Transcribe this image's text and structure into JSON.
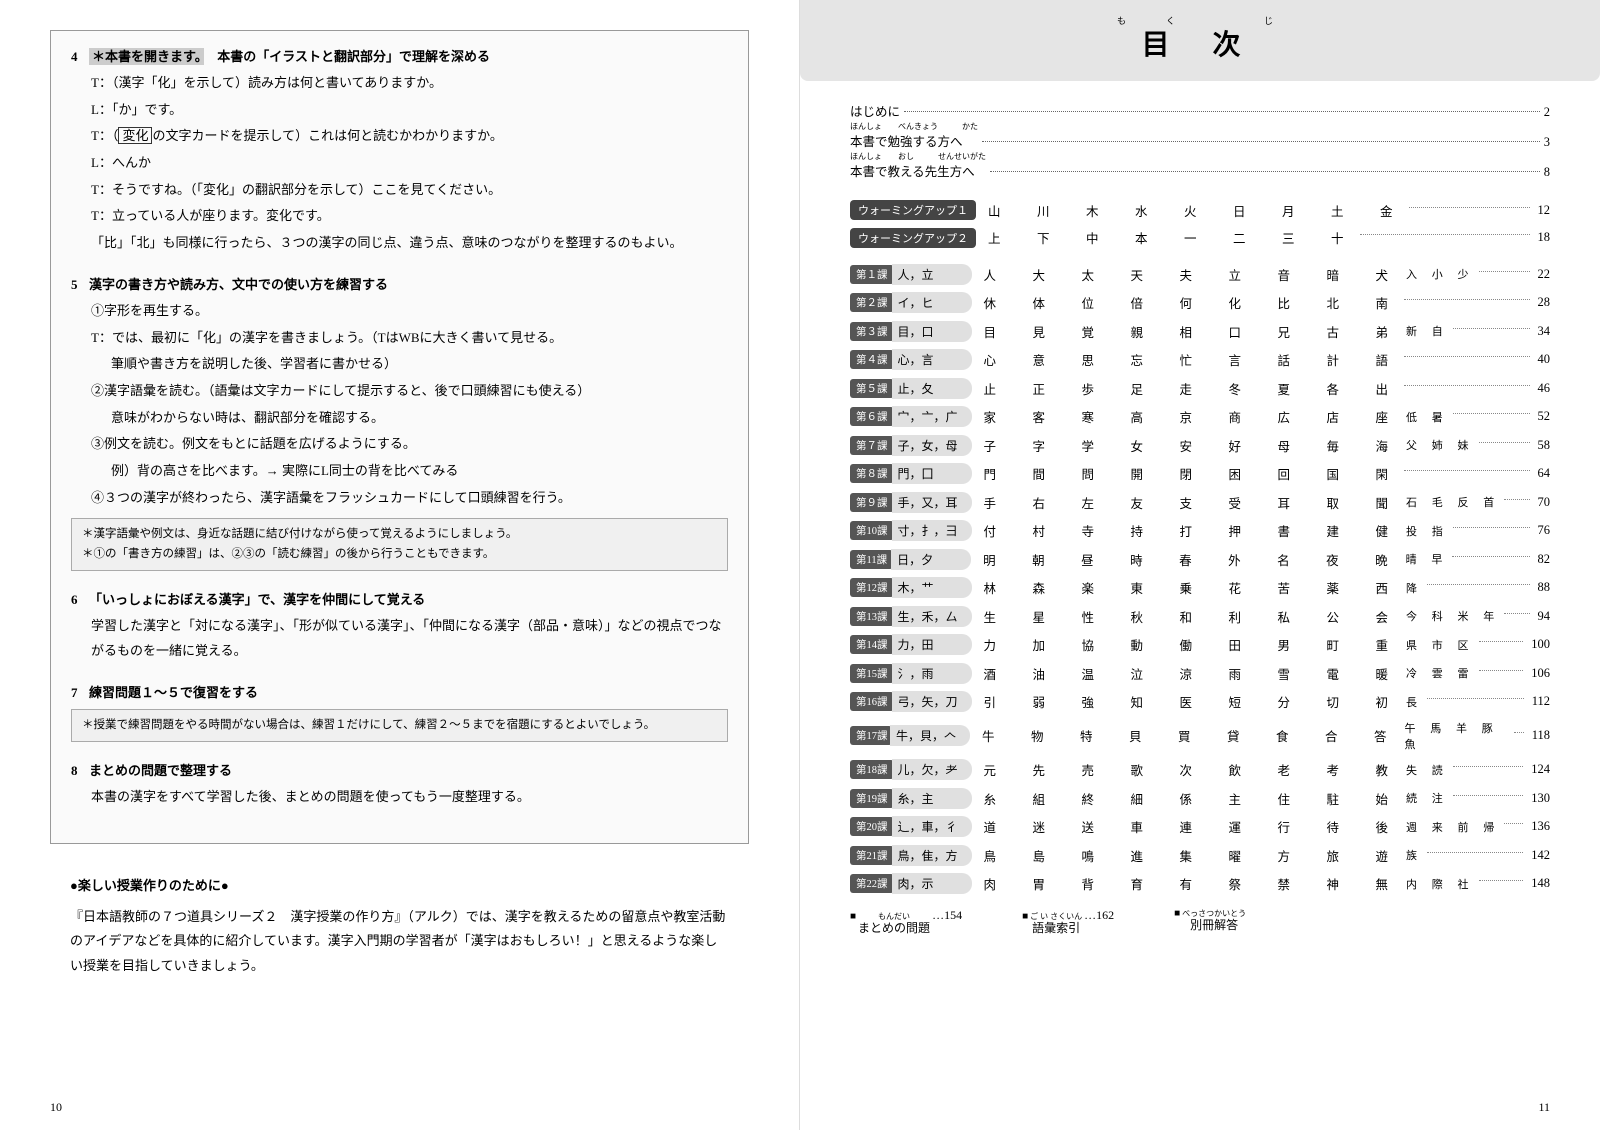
{
  "leftPage": {
    "pageNum": "10",
    "steps": [
      {
        "num": "4",
        "titlePre": "＊本書を開きます。",
        "titleMain": "本書の「イラストと翻訳部分」で理解を深める",
        "lines": [
          "T：（漢字「化」を示して）読み方は何と書いてありますか。",
          "L：「か」です。",
          "T：（<span class='boxed'>変化</span>の文字カードを提示して）これは何と読むかわかりますか。",
          "L：へんか",
          "T：そうですね。（「変化」の翻訳部分を示して）ここを見てください。",
          "T：立っている人が座ります。変化です。",
          "「比」「北」も同様に行ったら、３つの漢字の同じ点、違う点、意味のつながりを整理するのもよい。"
        ]
      },
      {
        "num": "5",
        "titleMain": "漢字の書き方や読み方、文中での使い方を練習する",
        "lines": [
          "①字形を再生する。",
          "T：では、最初に「化」の漢字を書きましょう。（TはWBに大きく書いて見せる。",
          "<span class='sub-indent'>筆順や書き方を説明した後、学習者に書かせる）</span>",
          "②漢字語彙を読む。（語彙は文字カードにして提示すると、後で口頭練習にも使える）",
          "<span class='sub-indent'>意味がわからない時は、翻訳部分を確認する。</span>",
          "③例文を読む。例文をもとに話題を広げるようにする。",
          "<span class='sub-indent'>例）背の高さを比べます。→ 実際にL同士の背を比べてみる</span>",
          "④３つの漢字が終わったら、漢字語彙をフラッシュカードにして口頭練習を行う。"
        ],
        "note": [
          "＊漢字語彙や例文は、身近な話題に結び付けながら使って覚えるようにしましょう。",
          "＊①の「書き方の練習」は、②③の「読む練習」の後から行うこともできます。"
        ]
      },
      {
        "num": "6",
        "titleMain": "「いっしょにおぼえる漢字」で、漢字を仲間にして覚える",
        "lines": [
          "学習した漢字と「対になる漢字」、「形が似ている漢字」、「仲間になる漢字（部品・意味）」などの視点でつながるものを一緒に覚える。"
        ]
      },
      {
        "num": "7",
        "titleMain": "練習問題１～５で復習をする",
        "note": [
          "＊授業で練習問題をやる時間がない場合は、練習１だけにして、練習２～５までを宿題にするとよいでしょう。"
        ]
      },
      {
        "num": "8",
        "titleMain": "まとめの問題で整理する",
        "lines": [
          "本書の漢字をすべて学習した後、まとめの問題を使ってもう一度整理する。"
        ]
      }
    ],
    "bottom": {
      "title": "●楽しい授業作りのために●",
      "body": "『日本語教師の７つ道具シリーズ２　漢字授業の作り方』（アルク）では、漢字を教えるための留意点や教室活動のアイデアなどを具体的に紹介しています。漢字入門期の学習者が「漢字はおもしろい！」と思えるような楽しい授業を目指していきましょう。"
    }
  },
  "rightPage": {
    "pageNum": "11",
    "header": {
      "ruby": "もく　じ",
      "main": "目 次"
    },
    "intro": [
      {
        "label": "はじめに",
        "ruby": "",
        "page": "2"
      },
      {
        "label": "本書で勉強する方へ",
        "ruby": "ほんしょ　　べんきょう　　　かた",
        "page": "3"
      },
      {
        "label": "本書で教える先生方へ",
        "ruby": "ほんしょ　　おし　　　せんせいがた",
        "page": "8"
      }
    ],
    "warmup": [
      {
        "label": "ウォーミングアップ１",
        "kanji": "山　川　木　水　火　日　月　土　金",
        "page": "12"
      },
      {
        "label": "ウォーミングアップ２",
        "kanji": "上　下　中　本　一　二　三　十",
        "page": "18"
      }
    ],
    "lessons": [
      {
        "n": "第１課",
        "t": "人，立",
        "k": "人　大　太　天　夫　立　音　暗　犬 入 小 少",
        "p": "22"
      },
      {
        "n": "第２課",
        "t": "イ，ヒ",
        "k": "休　体　位　倍　何　化　比　北　南",
        "p": "28"
      },
      {
        "n": "第３課",
        "t": "目，口",
        "k": "目　見　覚　親　相　口　兄　古　弟 新 自",
        "p": "34"
      },
      {
        "n": "第４課",
        "t": "心，言",
        "k": "心　意　思　忘　忙　言　話　計　語",
        "p": "40"
      },
      {
        "n": "第５課",
        "t": "止，夂",
        "k": "止　正　歩　足　走　冬　夏　各　出",
        "p": "46"
      },
      {
        "n": "第６課",
        "t": "宀，亠，广",
        "k": "家　客　寒　高　京　商　広　店　座 低 暑",
        "p": "52"
      },
      {
        "n": "第７課",
        "t": "子，女，母",
        "k": "子　字　学　女　安　好　母　毎　海 父 姉 妹",
        "p": "58"
      },
      {
        "n": "第８課",
        "t": "門，囗",
        "k": "門　間　問　開　閉　困　回　国　閑",
        "p": "64"
      },
      {
        "n": "第９課",
        "t": "手，又，耳",
        "k": "手　右　左　友　支　受　耳　取　聞 石 毛 反 首",
        "p": "70"
      },
      {
        "n": "第10課",
        "t": "寸，扌，彐",
        "k": "付　村　寺　持　打　押　書　建　健 投 指",
        "p": "76"
      },
      {
        "n": "第11課",
        "t": "日，夕",
        "k": "明　朝　昼　時　春　外　名　夜　晩 晴 早",
        "p": "82"
      },
      {
        "n": "第12課",
        "t": "木，艹",
        "k": "林　森　楽　東　乗　花　苦　薬　西 降",
        "p": "88"
      },
      {
        "n": "第13課",
        "t": "生，禾，厶",
        "k": "生　星　性　秋　和　利　私　公　会 今 科 米 年",
        "p": "94"
      },
      {
        "n": "第14課",
        "t": "力，田",
        "k": "力　加　協　動　働　田　男　町　重 県 市 区",
        "p": "100"
      },
      {
        "n": "第15課",
        "t": "氵，雨",
        "k": "酒　油　温　泣　涼　雨　雪　電　暖 冷 雲 雷",
        "p": "106"
      },
      {
        "n": "第16課",
        "t": "弓，矢，刀",
        "k": "引　弱　強　知　医　短　分　切　初 長",
        "p": "112"
      },
      {
        "n": "第17課",
        "t": "牛，貝，𠆢",
        "k": "牛　物　特　貝　買　貸　食　合　答 午 馬 羊 豚 魚",
        "p": "118"
      },
      {
        "n": "第18課",
        "t": "儿，欠，耂",
        "k": "元　先　売　歌　次　飲　老　考　教 失 読",
        "p": "124"
      },
      {
        "n": "第19課",
        "t": "糸，主",
        "k": "糸　組　終　細　係　主　住　駐　始 続 注",
        "p": "130"
      },
      {
        "n": "第20課",
        "t": "辶，車，彳",
        "k": "道　迷　送　車　連　運　行　待　後 週 来 前 帰",
        "p": "136"
      },
      {
        "n": "第21課",
        "t": "鳥，隹，方",
        "k": "鳥　島　鳴　進　集　曜　方　旅　遊 族",
        "p": "142"
      },
      {
        "n": "第22課",
        "t": "肉，示",
        "k": "肉　胃　背　育　有　祭　禁　神　無 内 際 社",
        "p": "148"
      }
    ],
    "footer": [
      {
        "label": "まとめの問題",
        "ruby": "もんだい",
        "page": "154"
      },
      {
        "label": "語彙索引",
        "ruby": "ご い さくいん",
        "page": "162"
      },
      {
        "label": "別冊解答",
        "ruby": "べっさつかいとう",
        "page": ""
      }
    ]
  }
}
